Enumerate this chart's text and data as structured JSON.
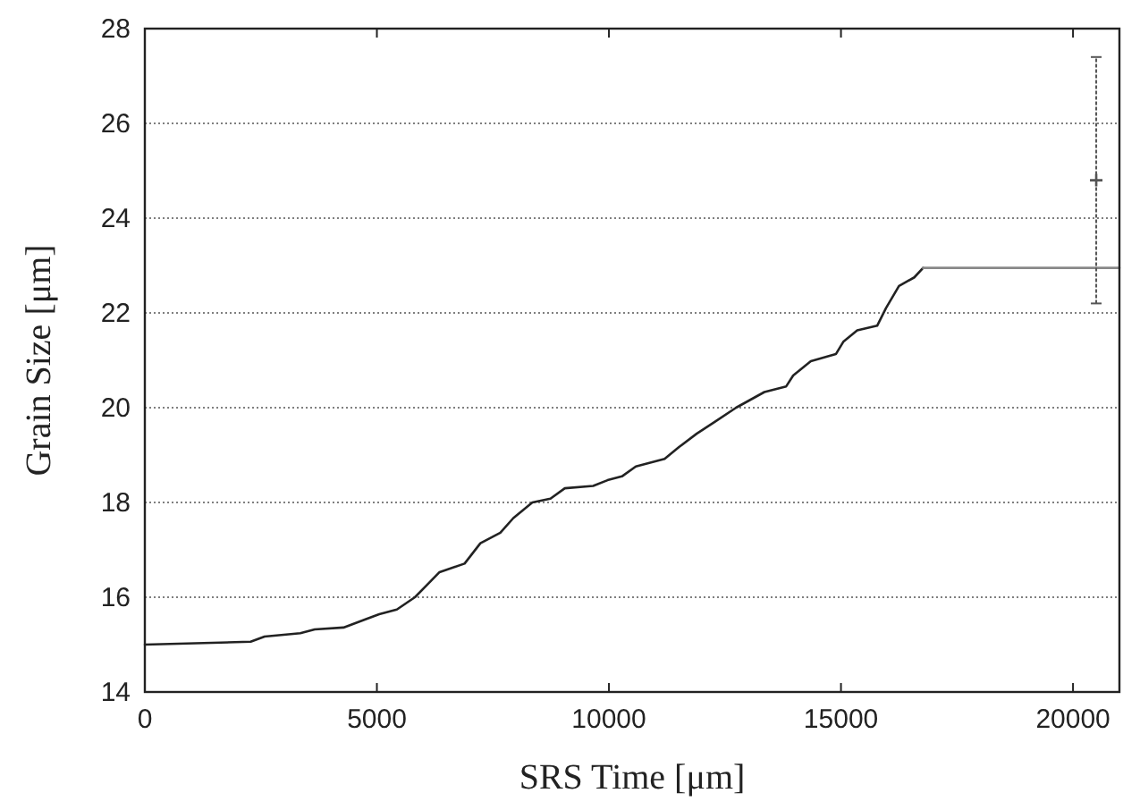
{
  "chart_data": {
    "type": "line",
    "xlabel": "SRS Time [μm]",
    "ylabel": "Grain Size [μm]",
    "xlim": [
      0,
      21000
    ],
    "xticks": [
      0,
      5000,
      10000,
      15000,
      20000
    ],
    "ylim": [
      14,
      28
    ],
    "yticks": [
      14,
      16,
      18,
      20,
      22,
      24,
      26,
      28
    ],
    "grid": "y",
    "marker": "none",
    "series": [
      {
        "color": "#222222",
        "x": [
          0,
          2280,
          2580,
          3350,
          3660,
          4280,
          4740,
          5050,
          5430,
          5820,
          6120,
          6350,
          6890,
          7230,
          7660,
          7940,
          8350,
          8740,
          9050,
          9660,
          9970,
          10280,
          10580,
          11200,
          11510,
          11890,
          12280,
          12740,
          13350,
          13820,
          13970,
          14350,
          14890,
          15050,
          15350,
          15780,
          15970,
          16250,
          16580,
          16770
        ],
        "values": [
          15.0,
          15.06,
          15.17,
          15.24,
          15.32,
          15.36,
          15.53,
          15.64,
          15.74,
          16.0,
          16.3,
          16.53,
          16.71,
          17.14,
          17.36,
          17.67,
          18.0,
          18.08,
          18.3,
          18.35,
          18.47,
          18.55,
          18.76,
          18.92,
          19.17,
          19.45,
          19.7,
          20.0,
          20.33,
          20.45,
          20.68,
          20.98,
          21.13,
          21.39,
          21.63,
          21.73,
          22.1,
          22.57,
          22.75,
          22.95
        ]
      },
      {
        "color": "#888888",
        "x": [
          16770,
          21000
        ],
        "values": [
          22.95,
          22.95
        ]
      },
      {
        "type": "scatter",
        "color": "#555555",
        "x": [
          20500
        ],
        "values": [
          24.8
        ],
        "errors": [
          2.6
        ],
        "marker": "cross"
      }
    ]
  }
}
